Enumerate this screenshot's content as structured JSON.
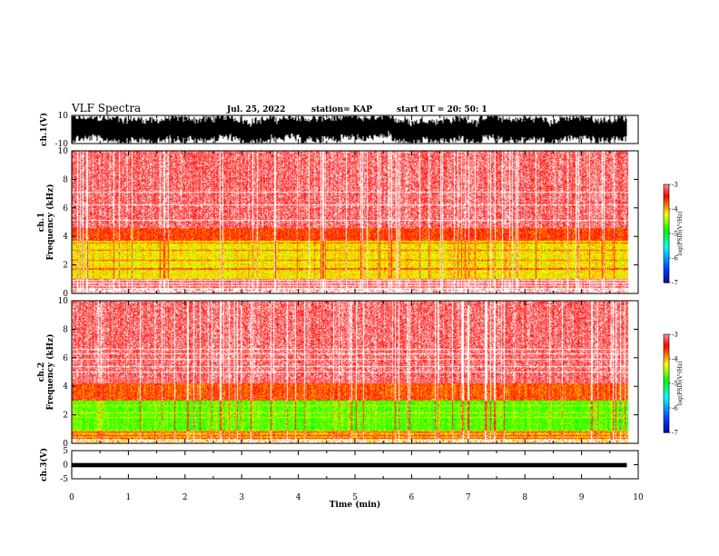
{
  "header": {
    "title": "VLF Spectra",
    "date": "Jul. 25, 2022",
    "station": "station= KAP",
    "start": "start  UT  =   20: 50: 1"
  },
  "chart_data": [
    {
      "type": "line",
      "name": "ch1-waveform",
      "ylabel": "ch.1(V)",
      "ylim": [
        -10,
        10
      ],
      "yticks": [
        "10",
        "-10"
      ],
      "x_end_min": 9.8
    },
    {
      "type": "heatmap",
      "name": "ch1-spectrogram",
      "ylabel_lines": [
        "ch.1",
        "Frequency  (kHz)"
      ],
      "ylim": [
        0,
        10
      ],
      "yticks": [
        "0",
        "2",
        "4",
        "6",
        "8",
        "10"
      ],
      "colorbar": {
        "ticks": [
          "-3",
          "-4",
          "-5",
          "-6",
          "-7"
        ],
        "label": "log(PSD)(V²/Hz)",
        "range": [
          -7,
          -3
        ]
      }
    },
    {
      "type": "heatmap",
      "name": "ch2-spectrogram",
      "ylabel_lines": [
        "ch.2",
        "Frequency  (kHz)"
      ],
      "ylim": [
        0,
        10
      ],
      "yticks": [
        "0",
        "2",
        "4",
        "6",
        "8",
        "10"
      ],
      "colorbar": {
        "ticks": [
          "-3",
          "-4",
          "-5",
          "-6",
          "-7"
        ],
        "label": "log(PSD)(V²/Hz)",
        "range": [
          -7,
          -3
        ]
      }
    },
    {
      "type": "line",
      "name": "ch3-waveform",
      "ylabel": "ch.3(V)",
      "ylim": [
        -5,
        5
      ],
      "yticks": [
        "5",
        "0",
        "-5"
      ],
      "x_end_min": 9.8
    }
  ],
  "x_axis": {
    "label": "Time  (min)",
    "range": [
      0,
      10
    ],
    "ticks": [
      "0",
      "1",
      "2",
      "3",
      "4",
      "5",
      "6",
      "7",
      "8",
      "9",
      "10"
    ]
  },
  "colors": {
    "trace": "#000000",
    "spectrum_high": "#ff0000",
    "spectrum_mid": "#ffff00",
    "spectrum_low": "#00ff00"
  }
}
